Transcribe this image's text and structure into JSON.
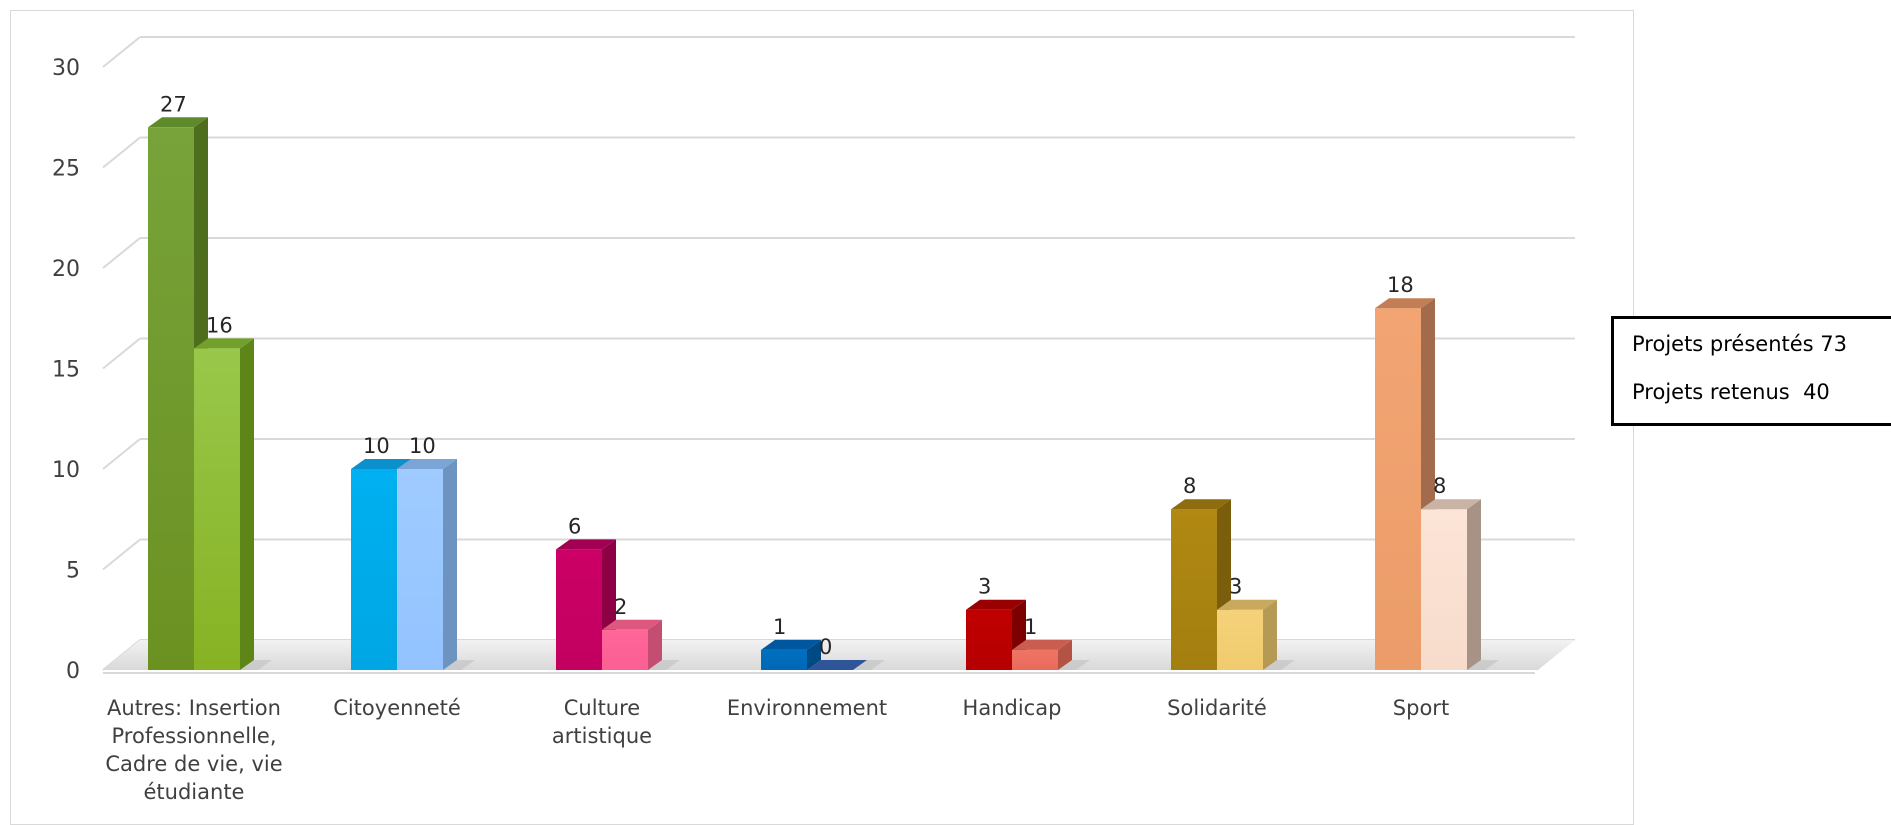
{
  "chart_data": {
    "type": "bar",
    "categories": [
      [
        "Autres: Insertion",
        "Professionnelle,",
        "Cadre de vie, vie",
        "étudiante"
      ],
      [
        "Citoyenneté"
      ],
      [
        "Culture",
        "artistique"
      ],
      [
        "Environnement"
      ],
      [
        "Handicap"
      ],
      [
        "Solidarité"
      ],
      [
        "Sport"
      ]
    ],
    "series": [
      {
        "values": [
          27,
          10,
          6,
          1,
          3,
          8,
          18
        ]
      },
      {
        "values": [
          16,
          10,
          2,
          0,
          1,
          3,
          8
        ]
      }
    ],
    "ylim": [
      0,
      30
    ],
    "yticks": [
      "0",
      "5",
      "10",
      "15",
      "20",
      "25",
      "30"
    ],
    "grid": true,
    "data_labels": true,
    "colors": [
      {
        "front": [
          "#77a33a",
          "#6b9121"
        ],
        "side": "#4e6e1d",
        "top": "#5e8a2c"
      },
      {
        "front": [
          "#99c74a",
          "#86b223"
        ],
        "side": "#5d8518",
        "top": "#73a02a"
      },
      {
        "front": [
          "#00b0f0",
          "#00a6e4"
        ],
        "side": "#0a82bd",
        "top": "#0c8fcd"
      },
      {
        "front": [
          "#9fcbff",
          "#93c3ff"
        ],
        "side": "#6d93c0",
        "top": "#7aa5d6"
      },
      {
        "front": [
          "#cc0066",
          "#c20060"
        ],
        "side": "#8e0044",
        "top": "#a30053"
      },
      {
        "front": [
          "#ff6699",
          "#fb5f93"
        ],
        "side": "#c44d72",
        "top": "#dd577f"
      },
      {
        "front": [
          "#0070c0",
          "#0068b5"
        ],
        "side": "#004a84",
        "top": "#0057a0"
      },
      {
        "front": [
          "#2e5597",
          "#2a4f8c"
        ],
        "side": "#213e6e",
        "top": "#2e5597"
      },
      {
        "front": [
          "#c00000",
          "#b50000"
        ],
        "side": "#7d0000",
        "top": "#990000"
      },
      {
        "front": [
          "#f07464",
          "#e96a5a"
        ],
        "side": "#b45246",
        "top": "#c95e50"
      },
      {
        "front": [
          "#b08812",
          "#a47f10"
        ],
        "side": "#7a5e0c",
        "top": "#8e6d0e"
      },
      {
        "front": [
          "#f5d27a",
          "#f0cb6e"
        ],
        "side": "#b59a55",
        "top": "#c7aa5e"
      },
      {
        "front": [
          "#f2a472",
          "#eb9c69"
        ],
        "side": "#a26b4b",
        "top": "#c27e55"
      },
      {
        "front": [
          "#fce4d6",
          "#f7dccc"
        ],
        "side": "#a69386",
        "top": "#c9b3a5"
      }
    ],
    "legend": [
      "Projets présentés 73",
      "Projets retenus  40"
    ],
    "legend_position": "right"
  }
}
